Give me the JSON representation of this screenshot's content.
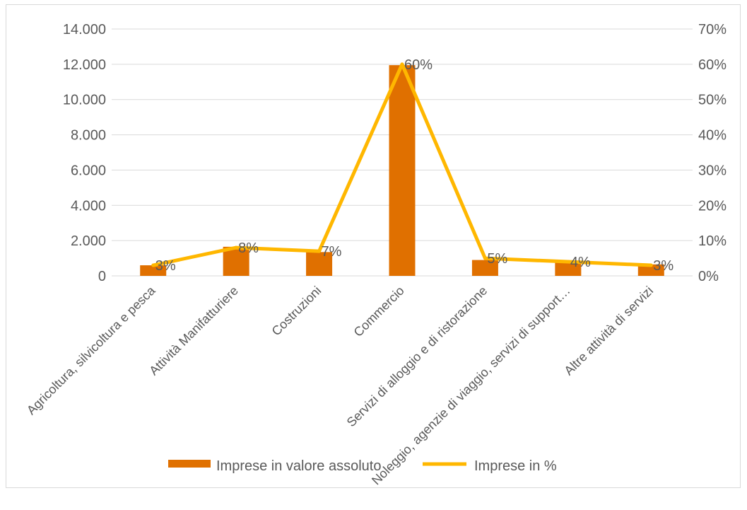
{
  "chart_data": {
    "type": "bar",
    "categories": [
      "Agricoltura, silvicoltura e pesca",
      "Attività Manifatturiere",
      "Costruzioni",
      "Commercio",
      "Servizi di alloggio e di ristorazione",
      "Noleggio, agenzie di viaggio, servizi di support…",
      "Altre attività di servizi"
    ],
    "series": [
      {
        "name": "Imprese in valore assoluto",
        "type": "bar",
        "axis": "left",
        "values": [
          600,
          1650,
          1350,
          11950,
          900,
          850,
          650
        ]
      },
      {
        "name": "Imprese in %",
        "type": "line",
        "axis": "right",
        "values": [
          3,
          8,
          7,
          60,
          5,
          4,
          3
        ],
        "labels": [
          "3%",
          "8%",
          "7%",
          "60%",
          "5%",
          "4%",
          "3%"
        ]
      }
    ],
    "ylim": [
      0,
      14000
    ],
    "yticks": [
      "0",
      "2.000",
      "4.000",
      "6.000",
      "8.000",
      "10.000",
      "12.000",
      "14.000"
    ],
    "y2lim": [
      0,
      70
    ],
    "y2ticks": [
      "0%",
      "10%",
      "20%",
      "30%",
      "40%",
      "50%",
      "60%",
      "70%"
    ],
    "grid": true,
    "legend": "bottom",
    "colors": {
      "bar": "#e07000",
      "line": "#ffb700",
      "grid": "#d9d9d9",
      "text": "#595959"
    }
  }
}
